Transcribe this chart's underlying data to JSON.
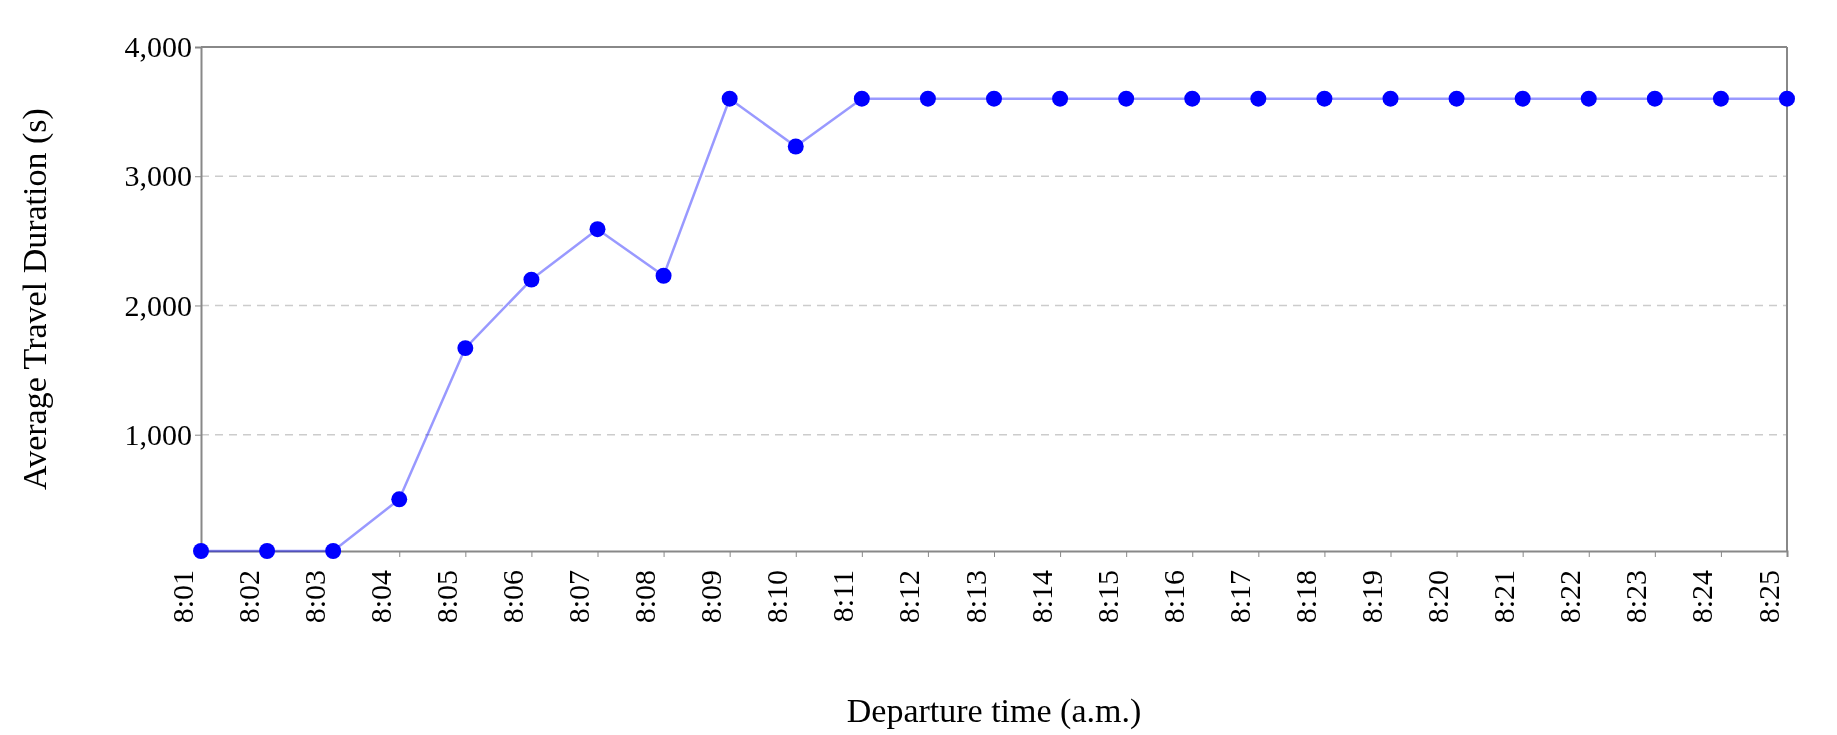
{
  "chart_data": {
    "type": "line",
    "xlabel": "Departure time (a.m.)",
    "ylabel": "Average Travel Duration (s)",
    "categories": [
      "8:01",
      "8:02",
      "8:03",
      "8:04",
      "8:05",
      "8:06",
      "8:07",
      "8:08",
      "8:09",
      "8:10",
      "8:11",
      "8:12",
      "8:13",
      "8:14",
      "8:15",
      "8:16",
      "8:17",
      "8:18",
      "8:19",
      "8:20",
      "8:21",
      "8:22",
      "8:23",
      "8:24",
      "8:25"
    ],
    "series": [
      {
        "color": "#0000ff",
        "values": [
          100,
          100,
          100,
          500,
          1670,
          2200,
          2590,
          2230,
          3600,
          3230,
          3600,
          3600,
          3600,
          3600,
          3600,
          3600,
          3600,
          3600,
          3600,
          3600,
          3600,
          3600,
          3600,
          3600,
          3600
        ]
      }
    ],
    "ylim": [
      100,
      4000
    ],
    "yticks": [
      {
        "value": 1000,
        "label": "1,000"
      },
      {
        "value": 2000,
        "label": "2,000"
      },
      {
        "value": 3000,
        "label": "3,000"
      },
      {
        "value": 4000,
        "label": "4,000"
      }
    ],
    "grid": "y",
    "marker": "circle",
    "line_style": "solid"
  }
}
